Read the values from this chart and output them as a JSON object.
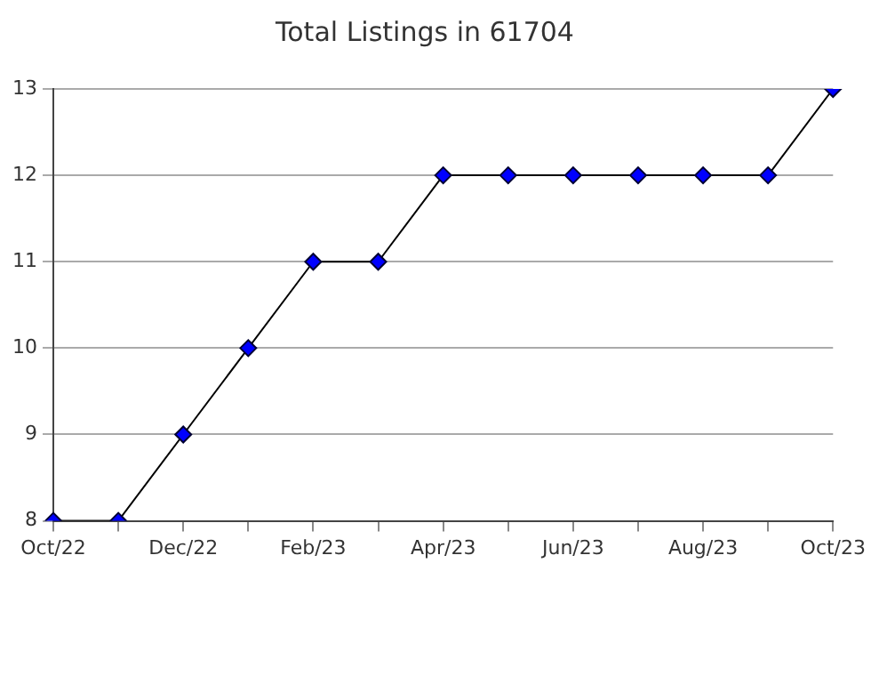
{
  "chart_data": {
    "type": "line",
    "title": "Total Listings in 61704",
    "categories": [
      "Oct/22",
      null,
      "Dec/22",
      null,
      "Feb/23",
      null,
      "Apr/23",
      null,
      "Jun/23",
      null,
      "Aug/23",
      null,
      "Oct/23"
    ],
    "series": [
      {
        "color": "#0000ff",
        "values": [
          8,
          8,
          9,
          10,
          11,
          11,
          12,
          12,
          12,
          12,
          12,
          12,
          13
        ]
      }
    ],
    "ylim": [
      8,
      13
    ],
    "yticks": [
      8,
      9,
      10,
      11,
      12,
      13
    ],
    "grid": "y",
    "legend": false,
    "marker": "diamond",
    "line_style": "solid"
  }
}
